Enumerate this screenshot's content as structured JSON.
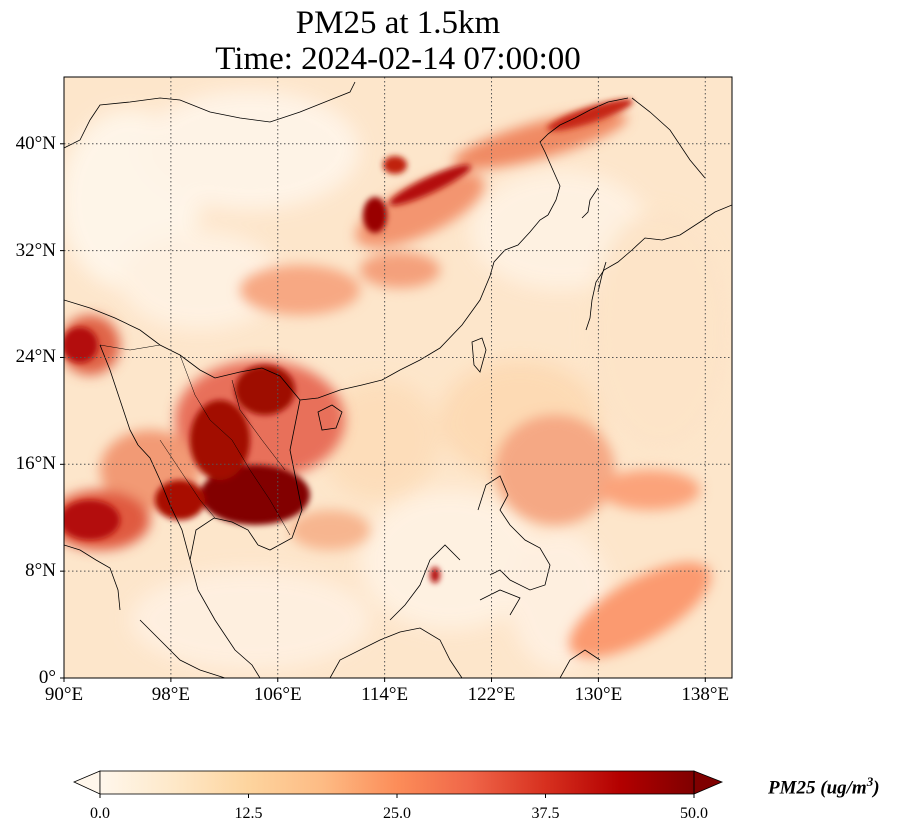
{
  "title": {
    "line1": "PM25 at 1.5km",
    "line2": "Time: 2024-02-14 07:00:00"
  },
  "map": {
    "lon_range": [
      90,
      140
    ],
    "lat_range": [
      0,
      45
    ],
    "lon_ticks": [
      "90°E",
      "98°E",
      "106°E",
      "114°E",
      "122°E",
      "130°E",
      "138°E"
    ],
    "lat_ticks": [
      "0°",
      "8°N",
      "16°N",
      "24°N",
      "32°N",
      "40°N"
    ],
    "lon_tick_values": [
      90,
      98,
      106,
      114,
      122,
      130,
      138
    ],
    "lat_tick_values": [
      0,
      8,
      16,
      24,
      32,
      40
    ],
    "gridlines": true,
    "colormap": "OrRd",
    "colormap_colors": [
      "#fff7ec",
      "#fee8c8",
      "#fdd49e",
      "#fdbb84",
      "#fc8d59",
      "#ef6548",
      "#d7301f",
      "#b30000",
      "#7f0000"
    ]
  },
  "colorbar": {
    "ticks": [
      "0.0",
      "12.5",
      "25.0",
      "37.5",
      "50.0"
    ],
    "tick_values": [
      0,
      12.5,
      25,
      37.5,
      50
    ],
    "range": [
      0,
      50
    ],
    "extend": "both",
    "label_main": "PM25 (ug/m",
    "label_sup": "3",
    "label_end": ")"
  }
}
